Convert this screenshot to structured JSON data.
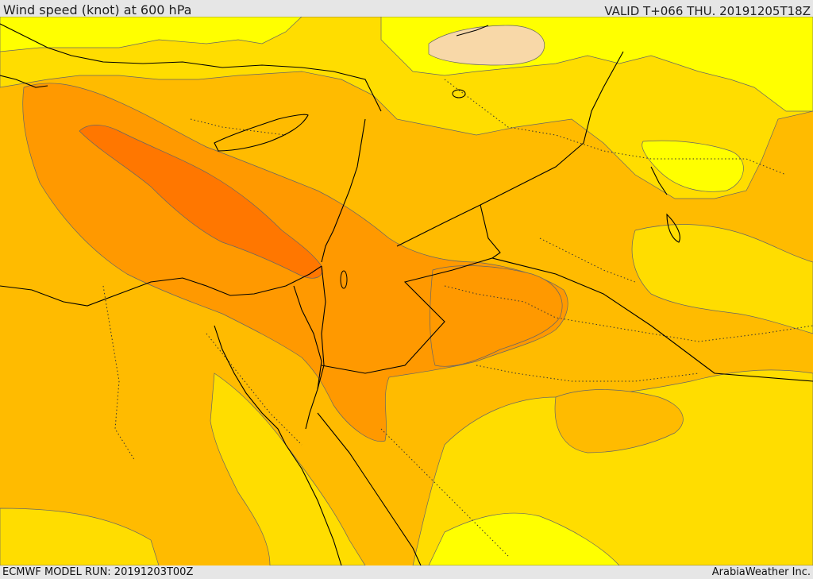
{
  "header": {
    "title": "Wind speed (knot) at 600 hPa",
    "valid": "VALID T+066 THU. 20191205T18Z"
  },
  "footer": {
    "model_run": "ECMWF MODEL RUN: 20191203T00Z",
    "credit": "ArabiaWeather Inc."
  },
  "map": {
    "variable": "wind speed",
    "units": "knot",
    "level": "600 hPa",
    "region": "Eastern Mediterranean / Middle East",
    "colors": {
      "band_lowest": "#ffff00",
      "band_low": "#ffdd00",
      "band_mid": "#ffbb00",
      "band_high": "#ff9900",
      "band_highest": "#ff7700",
      "band_special": "#f8d8a8",
      "coastline": "#000000",
      "contour": "#666666"
    }
  }
}
